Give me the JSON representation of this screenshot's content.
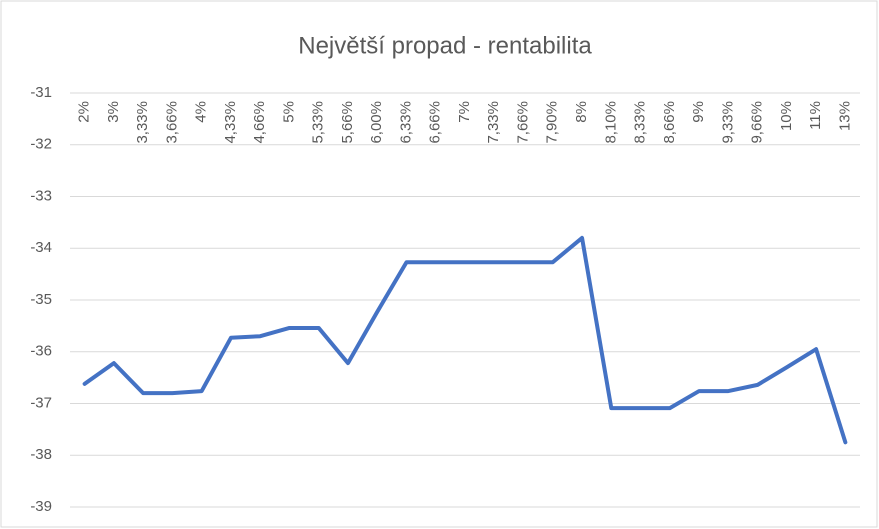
{
  "chart_data": {
    "type": "line",
    "title": "Největší propad - rentabilita",
    "categories": [
      "2%",
      "3%",
      "3,33%",
      "3,66%",
      "4%",
      "4,33%",
      "4,66%",
      "5%",
      "5,33%",
      "5,66%",
      "6,00%",
      "6,33%",
      "6,66%",
      "7%",
      "7,33%",
      "7,66%",
      "7,90%",
      "8%",
      "8,10%",
      "8,33%",
      "8,66%",
      "9%",
      "9,33%",
      "9,66%",
      "10%",
      "11%",
      "13%"
    ],
    "series": [
      {
        "color": "#4472c4",
        "values": [
          -36.62,
          -36.22,
          -36.8,
          -36.8,
          -36.76,
          -35.73,
          -35.7,
          -35.54,
          -35.54,
          -36.22,
          -35.23,
          -34.27,
          -34.27,
          -34.27,
          -34.27,
          -34.27,
          -34.27,
          -33.8,
          -37.09,
          -37.09,
          -37.09,
          -36.76,
          -36.76,
          -36.64,
          -36.3,
          -35.95,
          -37.75
        ]
      }
    ],
    "ylim": [
      -39,
      -31
    ],
    "yticks": [
      -39,
      -38,
      -37,
      -36,
      -35,
      -34,
      -33,
      -32,
      -31
    ],
    "grid": true
  }
}
